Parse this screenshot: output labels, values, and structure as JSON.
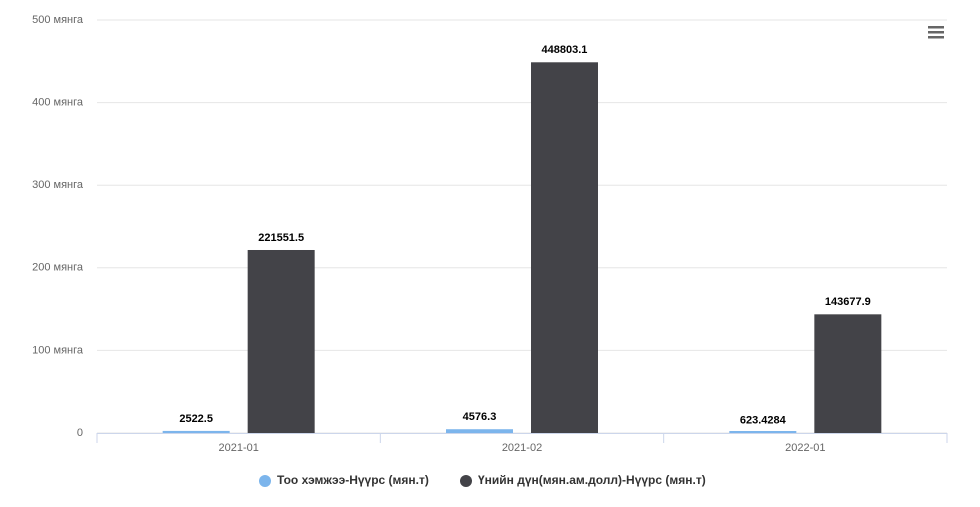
{
  "chart_data": {
    "type": "bar",
    "categories": [
      "2021-01",
      "2021-02",
      "2022-01"
    ],
    "series": [
      {
        "name": "Тоо хэмжээ-Нүүрс (мян.т)",
        "color": "#7cb5ec",
        "values": [
          2522.5,
          4576.3,
          623.4284
        ]
      },
      {
        "name": "Үнийн дүн(мян.ам.долл)-Нүүрс (мян.т)",
        "color": "#434348",
        "values": [
          221551.5,
          448803.1,
          143677.9
        ]
      }
    ],
    "ylim": [
      0,
      500000
    ],
    "yticks": [
      0,
      {
        "value": 100000,
        "label": "100 мянга"
      },
      {
        "value": 200000,
        "label": "200 мянга"
      },
      {
        "value": 300000,
        "label": "300 мянга"
      },
      {
        "value": 400000,
        "label": "400 мянга"
      },
      {
        "value": 500000,
        "label": "500 мянга"
      }
    ],
    "grid": true,
    "legend": "bottom"
  }
}
